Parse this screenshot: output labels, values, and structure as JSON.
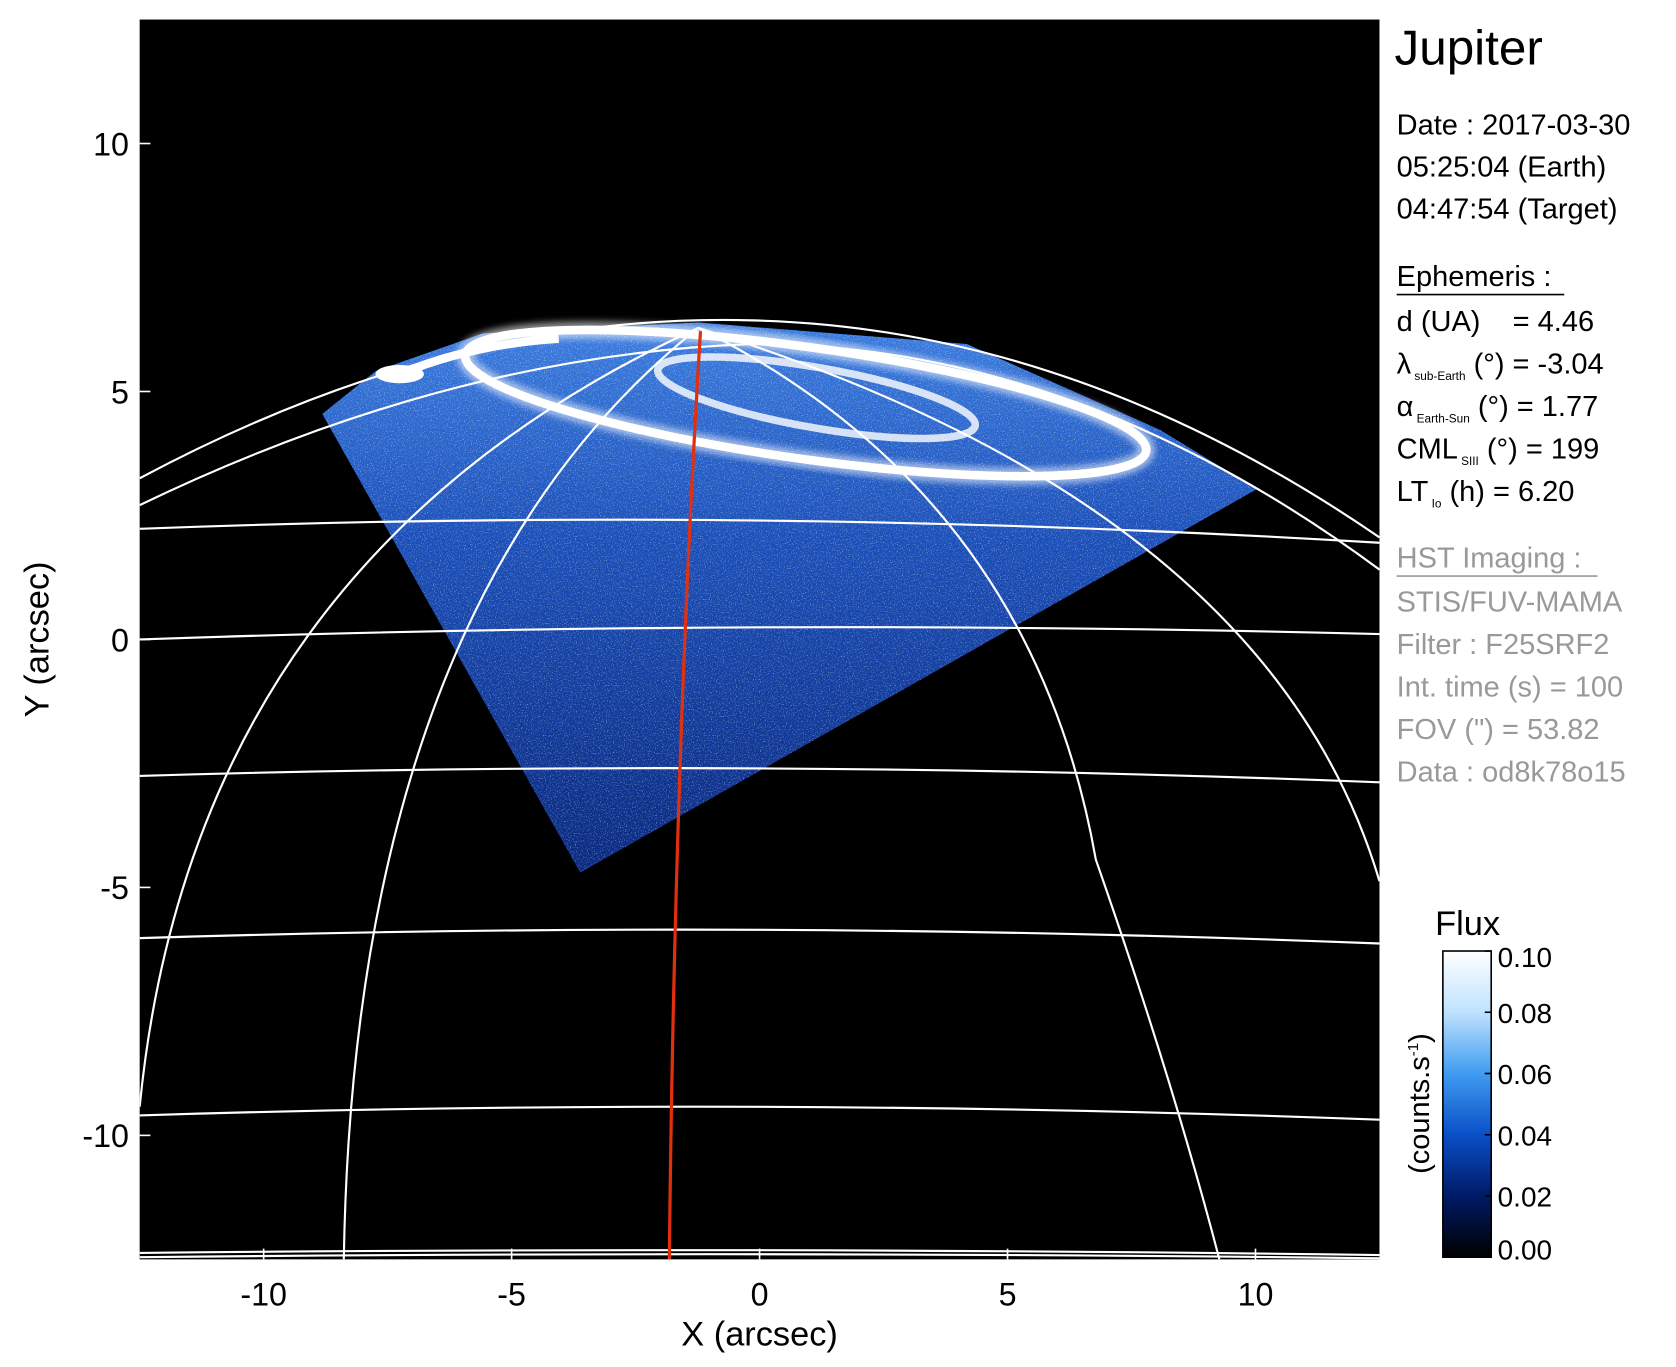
{
  "chart_data": {
    "type": "image",
    "title": "Jupiter",
    "xlabel": "X (arcsec)",
    "ylabel": "Y (arcsec)",
    "xlim": [
      -12.5,
      12.5
    ],
    "ylim": [
      -12.5,
      12.5
    ],
    "xticks": [
      -10,
      -5,
      0,
      5,
      10
    ],
    "yticks": [
      -10,
      -5,
      0,
      5,
      10
    ],
    "info": {
      "date": [
        "Date : 2017-03-30",
        "05:25:04 (Earth)",
        "04:47:54 (Target)"
      ],
      "ephemeris_title": "Ephemeris :",
      "ephemeris": [
        {
          "main": "d (UA)    = 4.46"
        },
        {
          "main": "λ",
          "sub": "sub-Earth",
          "rest": " (°) = -3.04"
        },
        {
          "main": "α",
          "sub": "Earth-Sun",
          "rest": " (°) = 1.77"
        },
        {
          "main": "CML",
          "sub": "SIII",
          "rest": " (°) = 199"
        },
        {
          "main": "LT",
          "sub": "Io",
          "rest": " (h) = 6.20"
        }
      ],
      "instrument_title": "HST Imaging :",
      "instrument": [
        "STIS/FUV-MAMA",
        "Filter : F25SRF2",
        "Int. time (s) = 100",
        "FOV (\") = 53.82",
        "Data : od8k78o15"
      ]
    },
    "colorbar": {
      "title": "Flux",
      "label": {
        "text": "(counts.s",
        "sup": "-1",
        "tail": ")"
      },
      "lim": [
        0,
        0.1
      ],
      "ticks": [
        {
          "value": 0,
          "label": "0.00"
        },
        0.02,
        0.04,
        0.06,
        0.08,
        {
          "value": 0.1,
          "label": "0.10"
        }
      ],
      "colors": [
        "#000000",
        "#001a66",
        "#0a4fc8",
        "#3f9cf0",
        "#bfe2ff",
        "#ffffff"
      ]
    }
  }
}
